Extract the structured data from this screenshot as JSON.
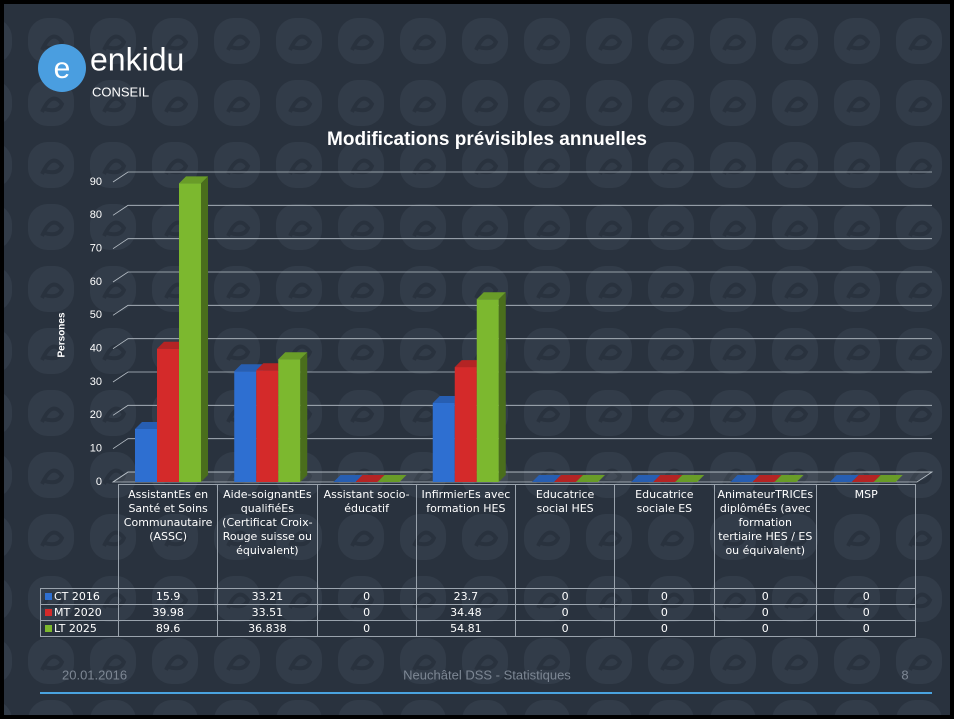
{
  "slide": {
    "logo": "enkidu",
    "logo_sub": "CONSEIL",
    "date": "20.01.2016",
    "footer": "Neuchâtel DSS - Statistiques",
    "page": "8"
  },
  "chart_data": {
    "type": "bar",
    "title": "Modifications prévisibles annuelles",
    "y_label": "Persones",
    "categories": [
      "AssistantEs en Santé et Soins Communautaire (ASSC)",
      "Aide-soignantEs qualifiéEs (Certificat Croix-Rouge suisse ou équivalent)",
      "Assistant socio-éducatif",
      "InfirmierEs avec formation HES",
      "Educatrice social HES",
      "Educatrice sociale ES",
      "AnimateurTRICEs diplôméEs (avec formation tertiaire HES / ES ou équivalent)",
      "MSP"
    ],
    "series": [
      {
        "name": "CT 2016",
        "color": "#2e6fd1",
        "values": [
          15.9,
          33.21,
          0,
          23.7,
          0,
          0,
          0,
          0
        ]
      },
      {
        "name": "MT 2020",
        "color": "#d42a2a",
        "values": [
          39.98,
          33.51,
          0,
          34.48,
          0,
          0,
          0,
          0
        ]
      },
      {
        "name": "LT 2025",
        "color": "#7cb82f",
        "values": [
          89.6,
          36.838,
          0,
          54.81,
          0,
          0,
          0,
          0
        ]
      }
    ],
    "ylim": [
      0,
      90
    ],
    "yticks": [
      0,
      10,
      20,
      30,
      40,
      50,
      60,
      70,
      80,
      90
    ],
    "grid": true
  }
}
